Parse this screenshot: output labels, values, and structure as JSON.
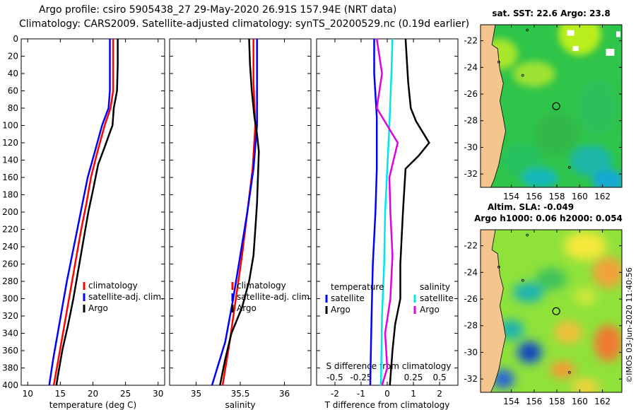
{
  "header": {
    "line1": "Argo profile: csiro 5905438_27 29-May-2020 26.91S 157.94E (NRT data)",
    "line2": "Climatology: CARS2009. Satellite-adjusted climatology: synTS_20200529.nc (0.19d earlier)"
  },
  "colors": {
    "climatology": "#ff0000",
    "satellite": "#0000ff",
    "argo": "#000000",
    "sat_salinity": "#00e5ee",
    "argo_salinity": "#e000e0",
    "land": "#f5c58e"
  },
  "chart_data": [
    {
      "type": "line",
      "name": "temperature",
      "xlabel": "temperature (deg C)",
      "xlim": [
        9,
        31
      ],
      "ylim": [
        400,
        0
      ],
      "xticks": [
        10,
        15,
        20,
        25,
        30
      ],
      "yticks": [
        0,
        20,
        40,
        60,
        80,
        100,
        120,
        140,
        160,
        180,
        200,
        220,
        240,
        260,
        280,
        300,
        320,
        340,
        360,
        380,
        400
      ],
      "legend": [
        "climatology",
        "satellite-adj. clim.",
        "Argo"
      ],
      "series": [
        {
          "name": "climatology",
          "color": "#ff0000",
          "points": [
            [
              23.1,
              0
            ],
            [
              23.1,
              30
            ],
            [
              23.1,
              60
            ],
            [
              22.7,
              80
            ],
            [
              21.8,
              100
            ],
            [
              20.7,
              130
            ],
            [
              19.7,
              160
            ],
            [
              19.0,
              190
            ],
            [
              18.2,
              220
            ],
            [
              17.5,
              250
            ],
            [
              16.8,
              280
            ],
            [
              16.1,
              310
            ],
            [
              15.4,
              340
            ],
            [
              14.7,
              370
            ],
            [
              14.0,
              400
            ]
          ]
        },
        {
          "name": "satellite-adj. clim.",
          "color": "#0000ff",
          "points": [
            [
              22.6,
              0
            ],
            [
              22.6,
              30
            ],
            [
              22.6,
              60
            ],
            [
              22.4,
              80
            ],
            [
              21.4,
              100
            ],
            [
              20.3,
              130
            ],
            [
              19.2,
              160
            ],
            [
              18.4,
              190
            ],
            [
              17.6,
              220
            ],
            [
              16.8,
              250
            ],
            [
              16.0,
              280
            ],
            [
              15.3,
              310
            ],
            [
              14.6,
              340
            ],
            [
              13.9,
              370
            ],
            [
              13.3,
              400
            ]
          ]
        },
        {
          "name": "Argo",
          "color": "#000000",
          "points": [
            [
              23.8,
              0
            ],
            [
              23.8,
              30
            ],
            [
              23.7,
              60
            ],
            [
              23.2,
              80
            ],
            [
              23.0,
              100
            ],
            [
              22.5,
              110
            ],
            [
              21.8,
              125
            ],
            [
              20.8,
              145
            ],
            [
              20.0,
              175
            ],
            [
              19.3,
              200
            ],
            [
              18.6,
              230
            ],
            [
              17.8,
              265
            ],
            [
              17.0,
              300
            ],
            [
              16.2,
              330
            ],
            [
              15.3,
              360
            ],
            [
              14.6,
              390
            ],
            [
              14.4,
              400
            ]
          ]
        }
      ]
    },
    {
      "type": "line",
      "name": "salinity",
      "xlabel": "salinity",
      "xlim": [
        34.7,
        36.3
      ],
      "ylim": [
        400,
        0
      ],
      "xticks": [
        35,
        35.5,
        36
      ],
      "xtick_labels": [
        "35",
        "35.5",
        "36"
      ],
      "legend": [
        "climatology",
        "satellite-adj. clim.",
        "Argo"
      ],
      "series": [
        {
          "name": "climatology",
          "color": "#ff0000",
          "points": [
            [
              35.65,
              0
            ],
            [
              35.65,
              50
            ],
            [
              35.67,
              100
            ],
            [
              35.64,
              150
            ],
            [
              35.58,
              200
            ],
            [
              35.52,
              250
            ],
            [
              35.45,
              300
            ],
            [
              35.38,
              350
            ],
            [
              35.3,
              400
            ]
          ]
        },
        {
          "name": "satellite-adj. clim.",
          "color": "#0000ff",
          "points": [
            [
              35.69,
              0
            ],
            [
              35.69,
              50
            ],
            [
              35.69,
              100
            ],
            [
              35.65,
              150
            ],
            [
              35.58,
              200
            ],
            [
              35.5,
              250
            ],
            [
              35.42,
              300
            ],
            [
              35.33,
              350
            ],
            [
              35.18,
              400
            ]
          ]
        },
        {
          "name": "Argo",
          "color": "#000000",
          "points": [
            [
              35.6,
              0
            ],
            [
              35.61,
              30
            ],
            [
              35.63,
              60
            ],
            [
              35.66,
              90
            ],
            [
              35.69,
              110
            ],
            [
              35.71,
              130
            ],
            [
              35.7,
              160
            ],
            [
              35.69,
              190
            ],
            [
              35.67,
              220
            ],
            [
              35.65,
              250
            ],
            [
              35.6,
              280
            ],
            [
              35.52,
              310
            ],
            [
              35.4,
              340
            ],
            [
              35.33,
              370
            ],
            [
              35.27,
              400
            ]
          ]
        }
      ]
    },
    {
      "type": "line",
      "name": "differences",
      "xlabel": "T difference from climatology",
      "xlim": [
        -2.7,
        2.7
      ],
      "ylim": [
        400,
        0
      ],
      "xticks": [
        -2,
        -1,
        0,
        1,
        2
      ],
      "upper_axis_title": "S difference from climatology",
      "upper_ticks": [
        -0.5,
        -0.25,
        0.25,
        0.5
      ],
      "upper_tick_labels": [
        "-0.5",
        "-0.25",
        "0.25",
        "0.5"
      ],
      "upper_xlim": [
        -0.675,
        0.675
      ],
      "legend_left_title": "temperature",
      "legend_right_title": "salinity",
      "legend_left": [
        "satellite",
        "Argo"
      ],
      "legend_right": [
        "satellite",
        "Argo"
      ],
      "series": [
        {
          "name": "T satellite",
          "color": "#0000ff",
          "axis": "T",
          "points": [
            [
              -0.5,
              0
            ],
            [
              -0.5,
              40
            ],
            [
              -0.4,
              90
            ],
            [
              -0.4,
              150
            ],
            [
              -0.45,
              200
            ],
            [
              -0.55,
              260
            ],
            [
              -0.6,
              320
            ],
            [
              -0.65,
              400
            ]
          ]
        },
        {
          "name": "T Argo",
          "color": "#000000",
          "axis": "T",
          "points": [
            [
              0.7,
              0
            ],
            [
              0.8,
              50
            ],
            [
              0.9,
              80
            ],
            [
              1.1,
              95
            ],
            [
              1.4,
              110
            ],
            [
              1.6,
              120
            ],
            [
              1.2,
              135
            ],
            [
              0.7,
              150
            ],
            [
              0.6,
              200
            ],
            [
              0.5,
              260
            ],
            [
              0.5,
              300
            ],
            [
              0.3,
              330
            ],
            [
              0.2,
              360
            ],
            [
              0.1,
              400
            ]
          ]
        },
        {
          "name": "S satellite",
          "color": "#00e5ee",
          "axis": "S",
          "points": [
            [
              0.05,
              0
            ],
            [
              0.04,
              40
            ],
            [
              0.02,
              100
            ],
            [
              0.0,
              150
            ],
            [
              -0.02,
              200
            ],
            [
              -0.03,
              260
            ],
            [
              -0.05,
              320
            ],
            [
              -0.06,
              400
            ]
          ]
        },
        {
          "name": "S Argo",
          "color": "#e000e0",
          "axis": "S",
          "points": [
            [
              -0.1,
              0
            ],
            [
              -0.05,
              40
            ],
            [
              -0.1,
              80
            ],
            [
              0.0,
              100
            ],
            [
              0.1,
              120
            ],
            [
              0.02,
              160
            ],
            [
              0.03,
              200
            ],
            [
              0.05,
              250
            ],
            [
              0.03,
              300
            ],
            [
              -0.02,
              340
            ],
            [
              0.0,
              380
            ],
            [
              -0.05,
              400
            ]
          ]
        }
      ]
    },
    {
      "type": "heatmap",
      "name": "sst_map",
      "title": "sat. SST: 22.6  Argo: 23.8",
      "xticks": [
        154,
        156,
        158,
        160,
        162
      ],
      "yticks": [
        -22,
        -24,
        -26,
        -28,
        -30,
        -32
      ],
      "xlim": [
        151.3,
        163.7
      ],
      "ylim": [
        -33.0,
        -20.8
      ],
      "argo_position": [
        157.94,
        -26.91
      ]
    },
    {
      "type": "heatmap",
      "name": "sla_map",
      "title_line1": "Altim. SLA: -0.049",
      "title_line2": "Argo h1000: 0.06  h2000: 0.054",
      "xticks": [
        154,
        156,
        158,
        160,
        162
      ],
      "yticks": [
        -22,
        -24,
        -26,
        -28,
        -30,
        -32
      ],
      "xlim": [
        151.3,
        163.7
      ],
      "ylim": [
        -33.0,
        -20.8
      ],
      "argo_position": [
        157.94,
        -26.91
      ]
    }
  ],
  "watermark": "©IMOS 03-Jun-2020 11:40:56"
}
